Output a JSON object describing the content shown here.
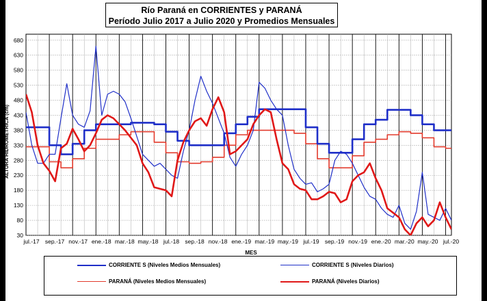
{
  "chart_data": {
    "type": "line",
    "title": "Río Paraná en CORRIENTES y PARANÁ",
    "subtitle": "Período Julio 2017 a Julio 2020 y Promedios Mensuales",
    "xlabel": "MES",
    "ylabel": "ALTURA HIDROMÉTRICA (cm)",
    "ylim": [
      30,
      700
    ],
    "yticks": [
      30,
      80,
      130,
      180,
      230,
      280,
      330,
      380,
      430,
      480,
      530,
      580,
      630,
      680
    ],
    "xticks": [
      "jul.-17",
      "sep.-17",
      "nov.-17",
      "ene.-18",
      "mar.-18",
      "may.-18",
      "jul.-18",
      "sep.-18",
      "nov.-18",
      "ene.-19",
      "mar.-19",
      "may.-19",
      "jul.-19",
      "sep.-19",
      "nov.-19",
      "ene.-20",
      "mar.-20",
      "may.-20",
      "jul.-20"
    ],
    "x_unit": "month index from jul.-17 (0) to jul.-20 (36)",
    "grid": true,
    "legend_position": "bottom",
    "series": [
      {
        "name": "CORRIENTE S (Niveles Medios Mensuales)",
        "color": "#1f2fc8",
        "width": 2.6,
        "step": true,
        "x": [
          0,
          1,
          2,
          3,
          4,
          5,
          6,
          7,
          8,
          9,
          10,
          11,
          12,
          13,
          14,
          15,
          16,
          17,
          18,
          19,
          20,
          21,
          22,
          23,
          24,
          25,
          26,
          27,
          28,
          29,
          30,
          31,
          32,
          33,
          34,
          35,
          36,
          36.5
        ],
        "y": [
          390,
          390,
          330,
          300,
          335,
          380,
          400,
          400,
          400,
          405,
          405,
          400,
          375,
          345,
          330,
          330,
          330,
          370,
          400,
          425,
          450,
          450,
          450,
          450,
          390,
          335,
          305,
          305,
          350,
          400,
          415,
          448,
          448,
          430,
          400,
          380,
          380,
          380
        ]
      },
      {
        "name": "CORRIENTE S (Niveles Diarios)",
        "color": "#1f2fc8",
        "width": 1.2,
        "step": false,
        "x": [
          0,
          0.5,
          1,
          1.5,
          2,
          2.5,
          3,
          3.5,
          4,
          4.5,
          5,
          5.5,
          6,
          6.5,
          7,
          7.5,
          8,
          8.5,
          9,
          9.5,
          10,
          10.5,
          11,
          11.5,
          12,
          12.5,
          13,
          13.5,
          14,
          14.5,
          15,
          15.5,
          16,
          16.5,
          17,
          17.5,
          18,
          18.5,
          19,
          19.5,
          20,
          20.5,
          21,
          21.5,
          22,
          22.5,
          23,
          23.5,
          24,
          24.5,
          25,
          25.5,
          26,
          26.5,
          27,
          27.5,
          28,
          28.5,
          29,
          29.5,
          30,
          30.5,
          31,
          31.5,
          32,
          32.5,
          33,
          33.5,
          34,
          34.5,
          35,
          35.5,
          36,
          36.5
        ],
        "y": [
          440,
          330,
          270,
          270,
          300,
          300,
          420,
          535,
          430,
          400,
          390,
          445,
          660,
          430,
          500,
          510,
          500,
          475,
          420,
          360,
          300,
          280,
          260,
          270,
          250,
          230,
          220,
          310,
          380,
          480,
          560,
          510,
          470,
          420,
          370,
          290,
          260,
          300,
          330,
          380,
          540,
          520,
          480,
          450,
          430,
          330,
          250,
          220,
          200,
          205,
          175,
          185,
          200,
          280,
          310,
          300,
          270,
          230,
          190,
          160,
          150,
          120,
          100,
          90,
          130,
          70,
          50,
          110,
          240,
          100,
          90,
          80,
          120,
          80
        ]
      },
      {
        "name": "PARANÁ (Niveles Medios Mensuales)",
        "color": "#e23a2c",
        "width": 1.6,
        "step": true,
        "x": [
          0,
          1,
          2,
          3,
          4,
          5,
          6,
          7,
          8,
          9,
          10,
          11,
          12,
          13,
          14,
          15,
          16,
          17,
          18,
          19,
          20,
          21,
          22,
          23,
          24,
          25,
          26,
          27,
          28,
          29,
          30,
          31,
          32,
          33,
          34,
          35,
          36,
          36.5
        ],
        "y": [
          325,
          325,
          275,
          255,
          285,
          320,
          350,
          350,
          365,
          375,
          375,
          340,
          305,
          275,
          270,
          275,
          290,
          330,
          365,
          380,
          380,
          380,
          380,
          370,
          335,
          285,
          255,
          255,
          295,
          340,
          350,
          365,
          375,
          370,
          355,
          325,
          320,
          320
        ]
      },
      {
        "name": "PARANÁ (Niveles Diarios)",
        "color": "#e01818",
        "width": 2.6,
        "step": false,
        "x": [
          0,
          0.5,
          1,
          1.5,
          2,
          2.5,
          3,
          3.5,
          4,
          4.5,
          5,
          5.5,
          6,
          6.5,
          7,
          7.5,
          8,
          8.5,
          9,
          9.5,
          10,
          10.5,
          11,
          11.5,
          12,
          12.5,
          13,
          13.5,
          14,
          14.5,
          15,
          15.5,
          16,
          16.5,
          17,
          17.5,
          18,
          18.5,
          19,
          19.5,
          20,
          20.5,
          21,
          21.5,
          22,
          22.5,
          23,
          23.5,
          24,
          24.5,
          25,
          25.5,
          26,
          26.5,
          27,
          27.5,
          28,
          28.5,
          29,
          29.5,
          30,
          30.5,
          31,
          31.5,
          32,
          32.5,
          33,
          33.5,
          34,
          34.5,
          35,
          35.5,
          36,
          36.5
        ],
        "y": [
          500,
          440,
          330,
          270,
          245,
          210,
          320,
          335,
          385,
          350,
          310,
          330,
          370,
          415,
          430,
          420,
          400,
          380,
          355,
          330,
          270,
          240,
          190,
          185,
          180,
          160,
          280,
          340,
          380,
          410,
          420,
          395,
          450,
          490,
          440,
          300,
          310,
          330,
          350,
          400,
          430,
          450,
          440,
          350,
          270,
          250,
          200,
          185,
          180,
          150,
          150,
          160,
          175,
          170,
          140,
          150,
          210,
          230,
          240,
          270,
          220,
          180,
          120,
          105,
          90,
          50,
          30,
          70,
          90,
          60,
          80,
          140,
          90,
          50
        ]
      }
    ]
  }
}
